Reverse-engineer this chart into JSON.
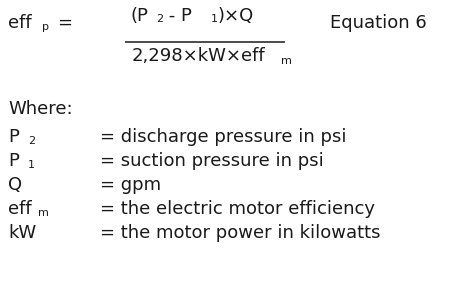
{
  "bg_color": "#ffffff",
  "text_color": "#1a1a1a",
  "equation_label": "Equation 6",
  "where_label": "Where:",
  "definitions": [
    {
      "symbol": "P",
      "sub": "2",
      "eq": "= discharge pressure in psi"
    },
    {
      "symbol": "P",
      "sub": "1",
      "eq": "= suction pressure in psi"
    },
    {
      "symbol": "Q",
      "sub": "",
      "eq": "= gpm"
    },
    {
      "symbol": "eff",
      "sub": "m",
      "eq": "= the electric motor efficiency"
    },
    {
      "symbol": "kW",
      "sub": "",
      "eq": "= the motor power in kilowatts"
    }
  ],
  "fs_main": 13.0,
  "fs_sub": 8.0,
  "fs_eq_label": 13.0
}
